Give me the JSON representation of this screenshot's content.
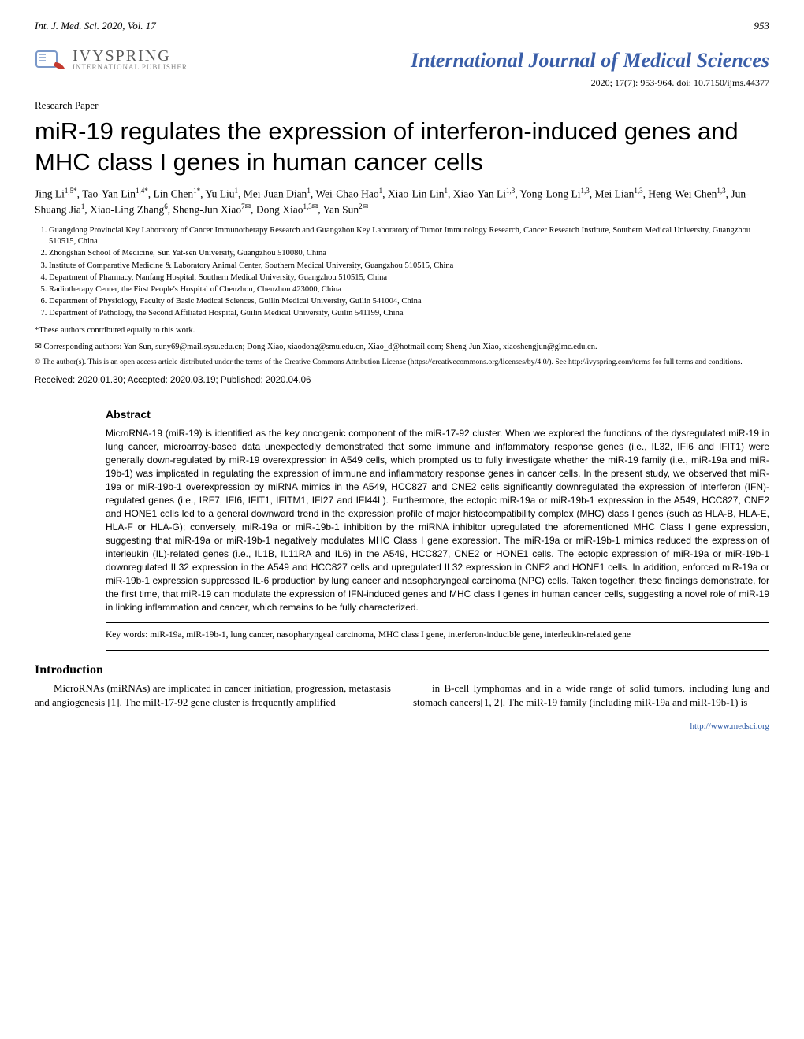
{
  "header": {
    "running_head_left": "Int. J. Med. Sci. 2020, Vol. 17",
    "page_number": "953"
  },
  "publisher": {
    "name_top": "IVYSPRING",
    "name_bottom": "INTERNATIONAL PUBLISHER"
  },
  "journal": {
    "name": "International Journal of Medical Sciences",
    "issue_line": "2020; 17(7): 953-964. doi: 10.7150/ijms.44377"
  },
  "paper_type": "Research Paper",
  "title": "miR-19 regulates the expression of interferon-induced genes and MHC class I genes in human cancer cells",
  "authors_html": "Jing Li<sup>1,5*</sup>, Tao-Yan Lin<sup>1,4*</sup>, Lin Chen<sup>1*</sup>, Yu Liu<sup>1</sup>, Mei-Juan Dian<sup>1</sup>, Wei-Chao Hao<sup>1</sup>, Xiao-Lin Lin<sup>1</sup>, Xiao-Yan Li<sup>1,3</sup>, Yong-Long Li<sup>1,3</sup>, Mei Lian<sup>1,3</sup>, Heng-Wei Chen<sup>1,3</sup>, Jun-Shuang Jia<sup>1</sup>, Xiao-Ling Zhang<sup>6</sup>, Sheng-Jun Xiao<sup>7✉</sup>, Dong Xiao<sup>1,3✉</sup>, Yan Sun<sup>2✉</sup>",
  "affiliations": [
    "Guangdong Provincial Key Laboratory of Cancer Immunotherapy Research and Guangzhou Key Laboratory of Tumor Immunology Research, Cancer Research Institute, Southern Medical University, Guangzhou 510515, China",
    "Zhongshan School of Medicine, Sun Yat-sen University, Guangzhou 510080, China",
    "Institute of Comparative Medicine & Laboratory Animal Center, Southern Medical University, Guangzhou 510515, China",
    "Department of Pharmacy, Nanfang Hospital, Southern Medical University, Guangzhou 510515, China",
    "Radiotherapy Center, the First People's Hospital of Chenzhou, Chenzhou 423000, China",
    "Department of Physiology, Faculty of Basic Medical Sciences, Guilin Medical University, Guilin 541004, China",
    "Department of Pathology, the Second Affiliated Hospital, Guilin Medical University, Guilin 541199, China"
  ],
  "equal_note": "*These authors contributed equally to this work.",
  "corresponding": "✉ Corresponding authors: Yan Sun, suny69@mail.sysu.edu.cn; Dong Xiao, xiaodong@smu.edu.cn, Xiao_d@hotmail.com; Sheng-Jun Xiao, xiaoshengjun@glmc.edu.cn.",
  "license": "© The author(s). This is an open access article distributed under the terms of the Creative Commons Attribution License (https://creativecommons.org/licenses/by/4.0/). See http://ivyspring.com/terms for full terms and conditions.",
  "dates": "Received: 2020.01.30; Accepted: 2020.03.19; Published: 2020.04.06",
  "abstract_heading": "Abstract",
  "abstract_text": "MicroRNA-19 (miR-19) is identified as the key oncogenic component of the miR-17-92 cluster. When we explored the functions of the dysregulated miR-19 in lung cancer, microarray-based data unexpectedly demonstrated that some immune and inflammatory response genes (i.e., IL32, IFI6 and IFIT1) were generally down-regulated by miR-19 overexpression in A549 cells, which prompted us to fully investigate whether the miR-19 family (i.e., miR-19a and miR-19b-1) was implicated in regulating the expression of immune and inflammatory response genes in cancer cells. In the present study, we observed that miR-19a or miR-19b-1 overexpression by miRNA mimics in the A549, HCC827 and CNE2 cells significantly downregulated the expression of interferon (IFN)-regulated genes (i.e., IRF7, IFI6, IFIT1, IFITM1, IFI27 and IFI44L). Furthermore, the ectopic miR-19a or miR-19b-1 expression in the A549, HCC827, CNE2 and HONE1 cells led to a general downward trend in the expression profile of major histocompatibility complex (MHC) class I genes (such as HLA-B, HLA-E, HLA-F or HLA-G); conversely, miR-19a or miR-19b-1 inhibition by the miRNA inhibitor upregulated the aforementioned MHC Class I gene expression, suggesting that miR-19a or miR-19b-1 negatively modulates MHC Class I gene expression. The miR-19a or miR-19b-1 mimics reduced the expression of interleukin (IL)-related genes (i.e., IL1B, IL11RA and IL6) in the A549, HCC827, CNE2 or HONE1 cells. The ectopic expression of miR-19a or miR-19b-1 downregulated IL32 expression in the A549 and HCC827 cells and upregulated IL32 expression in CNE2 and HONE1 cells. In addition, enforced miR-19a or miR-19b-1 expression suppressed IL-6 production by lung cancer and nasopharyngeal carcinoma (NPC) cells. Taken together, these findings demonstrate, for the first time, that miR-19 can modulate the expression of IFN-induced genes and MHC class I genes in human cancer cells, suggesting a novel role of miR-19 in linking inflammation and cancer, which remains to be fully characterized.",
  "keywords": "Key words: miR-19a, miR-19b-1, lung cancer, nasopharyngeal carcinoma, MHC class I gene, interferon-inducible gene, interleukin-related gene",
  "intro_heading": "Introduction",
  "intro_col1": "MicroRNAs (miRNAs) are implicated in cancer initiation, progression, metastasis and angiogenesis [1]. The miR-17-92 gene cluster is frequently amplified",
  "intro_col2": "in B-cell lymphomas and in a wide range of solid tumors, including lung and stomach cancers[1, 2]. The miR-19 family (including miR-19a and miR-19b-1) is",
  "footer_link": "http://www.medsci.org",
  "colors": {
    "journal_name": "#3a5ea8",
    "footer_link": "#2a58a5",
    "body_text": "#000000",
    "background": "#ffffff"
  }
}
